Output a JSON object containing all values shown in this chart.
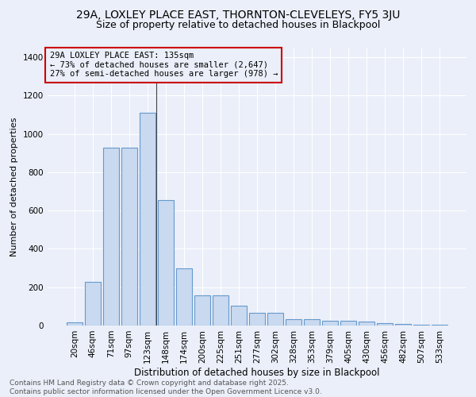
{
  "title1": "29A, LOXLEY PLACE EAST, THORNTON-CLEVELEYS, FY5 3JU",
  "title2": "Size of property relative to detached houses in Blackpool",
  "xlabel": "Distribution of detached houses by size in Blackpool",
  "ylabel": "Number of detached properties",
  "bar_labels": [
    "20sqm",
    "46sqm",
    "71sqm",
    "97sqm",
    "123sqm",
    "148sqm",
    "174sqm",
    "200sqm",
    "225sqm",
    "251sqm",
    "277sqm",
    "302sqm",
    "328sqm",
    "353sqm",
    "379sqm",
    "405sqm",
    "430sqm",
    "456sqm",
    "482sqm",
    "507sqm",
    "533sqm"
  ],
  "bar_values": [
    15,
    228,
    930,
    930,
    1110,
    655,
    300,
    158,
    158,
    105,
    65,
    65,
    35,
    35,
    25,
    25,
    20,
    13,
    8,
    5,
    3
  ],
  "bar_color": "#c9d9f0",
  "bar_edge_color": "#6699cc",
  "bar_edge_width": 0.8,
  "ylim": [
    0,
    1450
  ],
  "yticks": [
    0,
    200,
    400,
    600,
    800,
    1000,
    1200,
    1400
  ],
  "annotation_box_text": "29A LOXLEY PLACE EAST: 135sqm\n← 73% of detached houses are smaller (2,647)\n27% of semi-detached houses are larger (978) →",
  "annotation_box_color": "#cc0000",
  "property_line_x": 4.5,
  "background_color": "#eaeff9",
  "grid_color": "#ffffff",
  "footer_text": "Contains HM Land Registry data © Crown copyright and database right 2025.\nContains public sector information licensed under the Open Government Licence v3.0.",
  "title1_fontsize": 10,
  "title2_fontsize": 9,
  "xlabel_fontsize": 8.5,
  "ylabel_fontsize": 8,
  "tick_fontsize": 7.5,
  "annotation_fontsize": 7.5,
  "footer_fontsize": 6.5
}
